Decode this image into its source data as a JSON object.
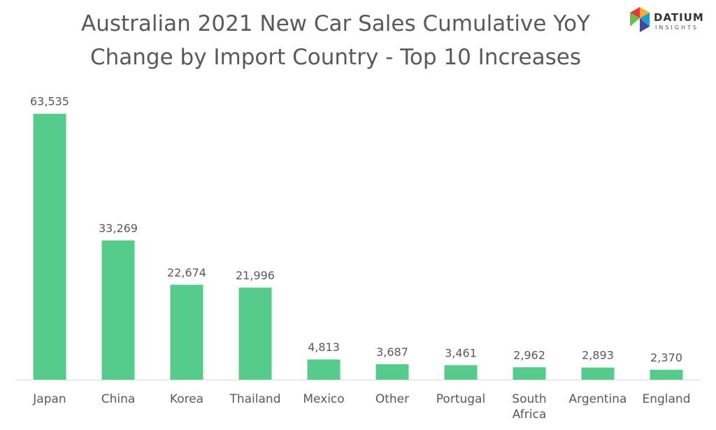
{
  "chart_data": {
    "type": "bar",
    "title_lines": [
      "Australian 2021 New Car Sales Cumulative YoY",
      "Change by Import Country - Top 10 Increases"
    ],
    "categories": [
      "Japan",
      "China",
      "Korea",
      "Thailand",
      "Mexico",
      "Other",
      "Portugal",
      "South Africa",
      "Argentina",
      "England"
    ],
    "values": [
      63535,
      33269,
      22674,
      21996,
      4813,
      3687,
      3461,
      2962,
      2893,
      2370
    ],
    "data_labels": [
      "63,535",
      "33,269",
      "22,674",
      "21,996",
      "4,813",
      "3,687",
      "3,461",
      "2,962",
      "2,893",
      "2,370"
    ],
    "ylim": [
      0,
      70000
    ],
    "grid": false,
    "bar_color": "#57cb8b",
    "axis_color": "#d9d9d9"
  },
  "logo": {
    "brand": "DATIUM",
    "sub": "INSIGHTS",
    "colors": [
      "#e4373f",
      "#f4b223",
      "#1f9bd7",
      "#3f4a9b",
      "#6cc04a"
    ]
  }
}
